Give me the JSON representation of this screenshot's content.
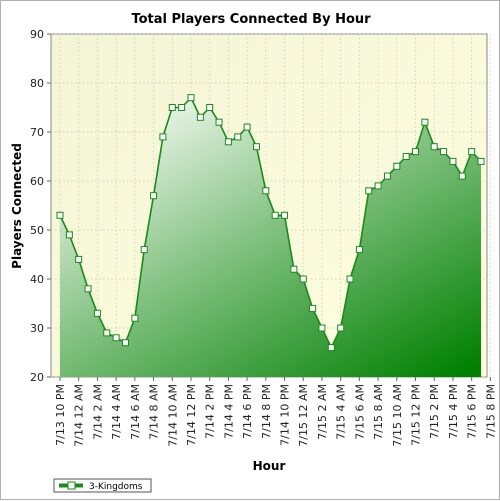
{
  "chart_data": {
    "type": "area",
    "title": "Total Players Connected By Hour",
    "xlabel": "Hour",
    "ylabel": "Players Connected",
    "ylim": [
      20,
      90
    ],
    "yticks": [
      20,
      30,
      40,
      50,
      60,
      70,
      80,
      90
    ],
    "grid": true,
    "legend_position": "bottom-left",
    "xtick_labels": [
      "7/13 10 PM",
      "7/14 12 AM",
      "7/14 2 AM",
      "7/14 4 AM",
      "7/14 6 AM",
      "7/14 8 AM",
      "7/14 10 AM",
      "7/14 12 PM",
      "7/14 2 PM",
      "7/14 4 PM",
      "7/14 6 PM",
      "7/14 8 PM",
      "7/14 10 PM",
      "7/15 12 AM",
      "7/15 2 AM",
      "7/15 4 AM",
      "7/15 6 AM",
      "7/15 8 AM",
      "7/15 10 AM",
      "7/15 12 PM",
      "7/15 2 PM",
      "7/15 4 PM",
      "7/15 6 PM",
      "7/15 8 PM"
    ],
    "series": [
      {
        "name": "3-Kingdoms",
        "color": "#1a8a1a",
        "values": [
          53,
          49,
          44,
          38,
          33,
          29,
          28,
          27,
          32,
          46,
          57,
          69,
          75,
          75,
          77,
          73,
          75,
          72,
          68,
          69,
          71,
          67,
          58,
          53,
          53,
          42,
          40,
          34,
          30,
          26,
          30,
          40,
          46,
          58,
          59,
          61,
          63,
          65,
          66,
          72,
          67,
          66,
          64,
          61,
          66,
          64
        ]
      }
    ]
  }
}
